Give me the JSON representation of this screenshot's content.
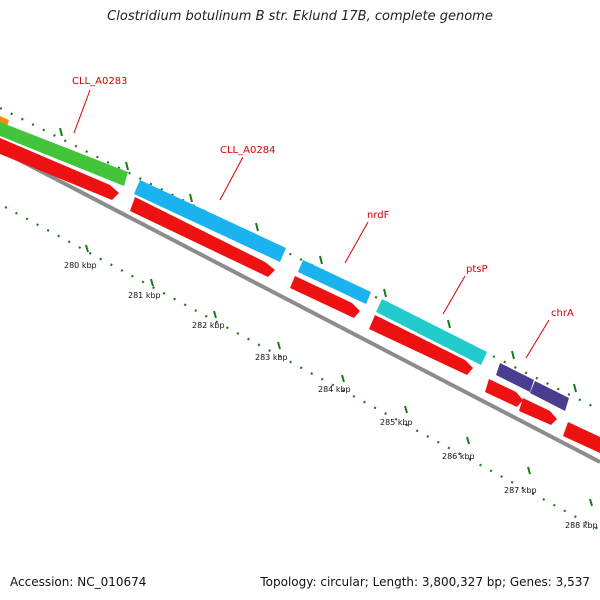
{
  "title": "Clostridium botulinum B str. Eklund 17B, complete genome",
  "footer": {
    "accession": "Accession: NC_010674",
    "topology": "Topology: circular; Length: 3,800,327 bp; Genes: 3,537"
  },
  "colors": {
    "backbone": "#8c8c8c",
    "cds": "#ee1111",
    "tick": "#1a7a1a",
    "label": "#d40000",
    "gene_green": "#44c43a",
    "gene_blue": "#1ab3f0",
    "gene_teal": "#22cccc",
    "gene_navy": "#4a3d8f",
    "gene_orange": "#f58a10"
  },
  "gene_labels": [
    {
      "id": "cll-a0283",
      "text": "CLL_A0283"
    },
    {
      "id": "cll-a0284",
      "text": "CLL_A0284"
    },
    {
      "id": "nrdf",
      "text": "nrdF"
    },
    {
      "id": "ptsp",
      "text": "ptsP"
    },
    {
      "id": "chra",
      "text": "chrA"
    }
  ],
  "kbp_labels": [
    "280 kbp",
    "281 kbp",
    "282 kbp",
    "283 kbp",
    "284 kbp",
    "285 kbp",
    "286 kbp",
    "287 kbp",
    "288 kbp"
  ]
}
